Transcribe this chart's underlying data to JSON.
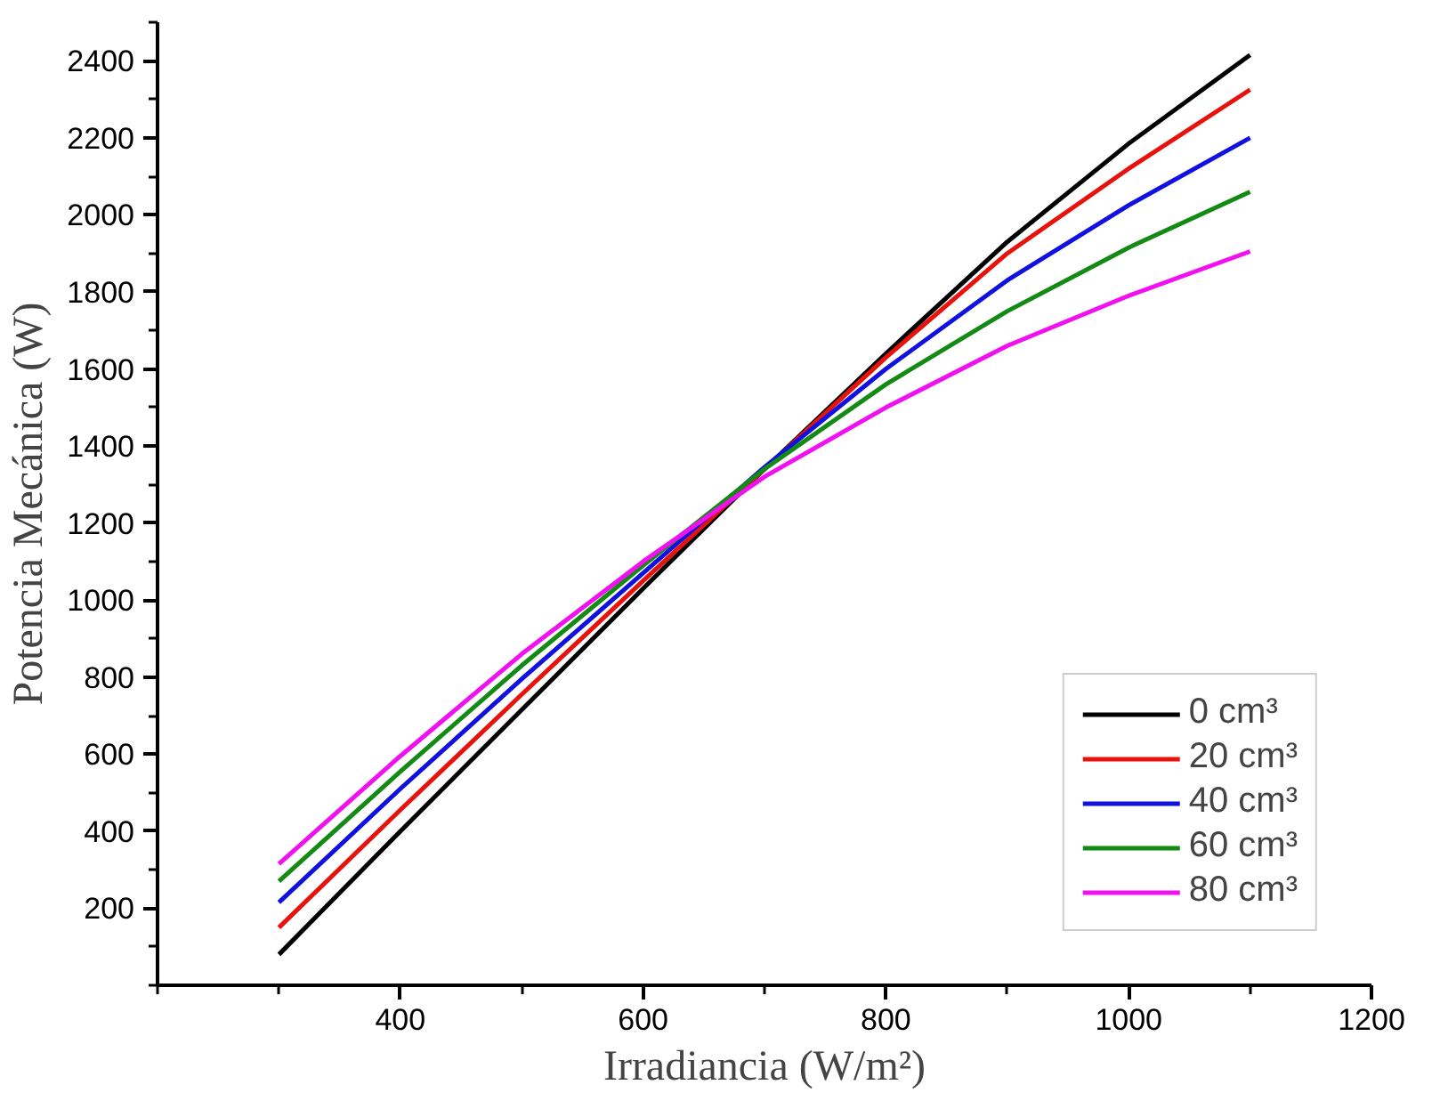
{
  "chart_data": {
    "type": "line",
    "xlabel": "Irradiancia (W/m²)",
    "ylabel": "Potencia Mecánica (W)",
    "x": [
      300,
      400,
      500,
      600,
      700,
      800,
      900,
      1000,
      1100
    ],
    "series": [
      {
        "name": "0 cm³",
        "color": "#000000",
        "values": [
          80,
          400,
          715,
          1030,
          1340,
          1640,
          1930,
          2185,
          2415
        ]
      },
      {
        "name": "20 cm³",
        "color": "#e8120c",
        "values": [
          150,
          455,
          755,
          1050,
          1340,
          1630,
          1900,
          2120,
          2325
        ]
      },
      {
        "name": "40 cm³",
        "color": "#1010e0",
        "values": [
          215,
          510,
          795,
          1070,
          1345,
          1600,
          1830,
          2025,
          2200
        ]
      },
      {
        "name": "60 cm³",
        "color": "#138a13",
        "values": [
          270,
          555,
          830,
          1090,
          1340,
          1560,
          1750,
          1915,
          2060
        ]
      },
      {
        "name": "80 cm³",
        "color": "#f010f0",
        "values": [
          315,
          595,
          860,
          1100,
          1320,
          1500,
          1660,
          1790,
          1905
        ]
      }
    ],
    "xlim": [
      200,
      1200
    ],
    "xticks": [
      400,
      600,
      800,
      1000,
      1200
    ],
    "ylim": [
      0,
      2500
    ],
    "yticks": [
      200,
      400,
      600,
      800,
      1000,
      1200,
      1400,
      1600,
      1800,
      2000,
      2200,
      2400
    ],
    "grid": false,
    "legend": "bottom right",
    "marker": "none",
    "line_style": "solid"
  }
}
